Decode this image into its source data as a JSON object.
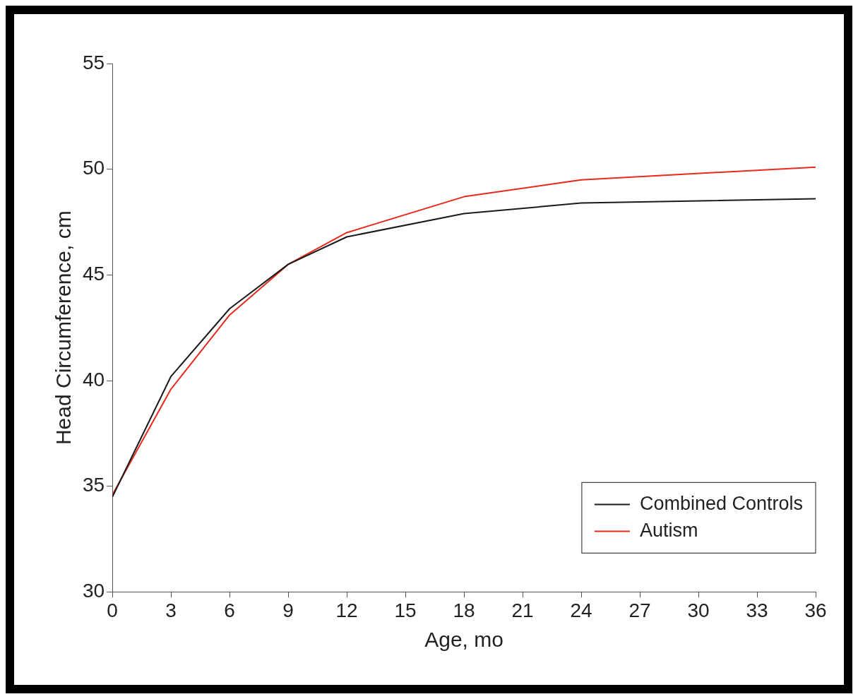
{
  "chart_data": {
    "type": "line",
    "xlabel": "Age, mo",
    "ylabel": "Head Circumference, cm",
    "xlim": [
      0,
      36
    ],
    "xticks": [
      0,
      3,
      6,
      9,
      12,
      15,
      18,
      21,
      24,
      27,
      30,
      33,
      36
    ],
    "ylim": [
      30,
      55
    ],
    "yticks": [
      30,
      35,
      40,
      45,
      50,
      55
    ],
    "x": [
      0,
      3,
      6,
      9,
      12,
      18,
      24,
      36
    ],
    "series": [
      {
        "name": "Combined Controls",
        "color": "#1a1a1a",
        "values": [
          34.5,
          40.2,
          43.4,
          45.5,
          46.8,
          47.9,
          48.4,
          48.6
        ]
      },
      {
        "name": "Autism",
        "color": "#e8291c",
        "values": [
          34.6,
          39.6,
          43.1,
          45.5,
          47.0,
          48.7,
          49.5,
          50.1
        ]
      }
    ],
    "grid": false,
    "legend": "bottom right",
    "marker": "none",
    "line_style": "solid"
  }
}
